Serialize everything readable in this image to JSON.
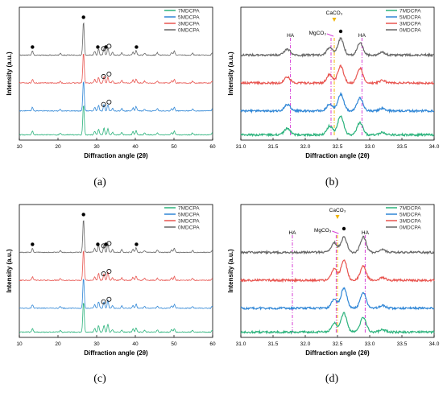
{
  "figure": {
    "captions": [
      "(a)",
      "(b)",
      "(c)",
      "(d)"
    ]
  },
  "chart_data": [
    {
      "type": "line",
      "panel": "a",
      "xlabel": "Diffraction angle (2θ)",
      "ylabel": "Intensity (a.u.)",
      "xlim": [
        10,
        60
      ],
      "xticks": [
        10,
        20,
        30,
        40,
        50,
        60
      ],
      "legend": "top-right",
      "series": [
        {
          "name": "7MDCPA",
          "color": "#2ab27b"
        },
        {
          "name": "5MDCPA",
          "color": "#2f86d6"
        },
        {
          "name": "3MDCPA",
          "color": "#e8544f"
        },
        {
          "name": "0MDCPA",
          "color": "#666666"
        }
      ],
      "peaks": [
        {
          "x": 13.4,
          "h": 0.12
        },
        {
          "x": 20.6,
          "h": 0.05
        },
        {
          "x": 26.6,
          "h": 1.0
        },
        {
          "x": 29.5,
          "h": 0.12
        },
        {
          "x": 30.5,
          "h": 0.18
        },
        {
          "x": 31.9,
          "h": 0.22
        },
        {
          "x": 32.9,
          "h": 0.2
        },
        {
          "x": 34.1,
          "h": 0.08
        },
        {
          "x": 36.5,
          "h": 0.08
        },
        {
          "x": 39.4,
          "h": 0.1
        },
        {
          "x": 40.2,
          "h": 0.14
        },
        {
          "x": 42.4,
          "h": 0.06
        },
        {
          "x": 45.7,
          "h": 0.07
        },
        {
          "x": 49.4,
          "h": 0.08
        },
        {
          "x": 50.1,
          "h": 0.12
        },
        {
          "x": 54.8,
          "h": 0.06
        },
        {
          "x": 59.9,
          "h": 0.06
        }
      ],
      "filled_dot_markers": [
        13.4,
        26.6,
        30.3,
        32.4,
        40.3
      ],
      "open_circle_markers": [
        31.8,
        33.2
      ]
    },
    {
      "type": "line",
      "panel": "b",
      "xlabel": "Diffraction angle (2θ)",
      "ylabel": "Intensity (a.u.)",
      "xlim": [
        31.0,
        34.0
      ],
      "xticks": [
        "31.0",
        "31.5",
        "32.0",
        "32.5",
        "33.0",
        "33.5",
        "34.0"
      ],
      "legend": "top-right",
      "series": [
        {
          "name": "7MDCPA",
          "color": "#2ab27b"
        },
        {
          "name": "5MDCPA",
          "color": "#2f86d6"
        },
        {
          "name": "3MDCPA",
          "color": "#e8544f"
        },
        {
          "name": "0MDCPA",
          "color": "#666666"
        }
      ],
      "peaks": [
        {
          "x": 31.72,
          "h": 0.3
        },
        {
          "x": 32.38,
          "h": 0.35
        },
        {
          "x": 32.55,
          "h": 0.8
        },
        {
          "x": 32.85,
          "h": 0.6
        },
        {
          "x": 33.2,
          "h": 0.12
        }
      ],
      "reference_lines": [
        {
          "x": 31.77,
          "label": "HA",
          "color": "#d63fd6"
        },
        {
          "x": 32.4,
          "label": "MgCO₃",
          "color": "#d63fd6"
        },
        {
          "x": 32.45,
          "label": "CaCO₃",
          "color": "#f0b400"
        },
        {
          "x": 32.88,
          "label": "HA",
          "color": "#d63fd6"
        }
      ],
      "filled_dot_markers": [
        32.55
      ]
    },
    {
      "type": "line",
      "panel": "c",
      "xlabel": "Diffraction angle (2θ)",
      "ylabel": "Intensity (a.u.)",
      "xlim": [
        10,
        60
      ],
      "xticks": [
        10,
        20,
        30,
        40,
        50,
        60
      ],
      "legend": "top-right",
      "series": [
        {
          "name": "7MDCPA",
          "color": "#2ab27b"
        },
        {
          "name": "5MDCPA",
          "color": "#2f86d6"
        },
        {
          "name": "3MDCPA",
          "color": "#e8544f"
        },
        {
          "name": "0MDCPA",
          "color": "#666666"
        }
      ],
      "peaks": [
        {
          "x": 13.4,
          "h": 0.12
        },
        {
          "x": 20.6,
          "h": 0.05
        },
        {
          "x": 26.6,
          "h": 1.0
        },
        {
          "x": 29.5,
          "h": 0.12
        },
        {
          "x": 30.5,
          "h": 0.22
        },
        {
          "x": 31.9,
          "h": 0.22
        },
        {
          "x": 32.9,
          "h": 0.26
        },
        {
          "x": 34.1,
          "h": 0.08
        },
        {
          "x": 36.5,
          "h": 0.08
        },
        {
          "x": 39.4,
          "h": 0.1
        },
        {
          "x": 40.2,
          "h": 0.14
        },
        {
          "x": 42.4,
          "h": 0.06
        },
        {
          "x": 45.7,
          "h": 0.07
        },
        {
          "x": 49.4,
          "h": 0.08
        },
        {
          "x": 50.1,
          "h": 0.12
        },
        {
          "x": 54.8,
          "h": 0.06
        },
        {
          "x": 59.9,
          "h": 0.06
        }
      ],
      "filled_dot_markers": [
        13.4,
        26.6,
        30.3,
        32.4,
        40.3
      ],
      "open_circle_markers": [
        31.8,
        33.2
      ]
    },
    {
      "type": "line",
      "panel": "d",
      "xlabel": "Diffraction angle (2θ)",
      "ylabel": "Intensity (a.u.)",
      "xlim": [
        31.0,
        34.0
      ],
      "xticks": [
        "31.0",
        "31.5",
        "32.0",
        "32.5",
        "33.0",
        "33.5",
        "34.0"
      ],
      "legend": "top-right",
      "series": [
        {
          "name": "7MDCPA",
          "color": "#2ab27b"
        },
        {
          "name": "5MDCPA",
          "color": "#2f86d6"
        },
        {
          "name": "3MDCPA",
          "color": "#e8544f"
        },
        {
          "name": "0MDCPA",
          "color": "#666666"
        }
      ],
      "peaks": [
        {
          "x": 32.45,
          "h": 0.45
        },
        {
          "x": 32.6,
          "h": 0.8
        },
        {
          "x": 32.9,
          "h": 0.7
        },
        {
          "x": 33.2,
          "h": 0.12
        }
      ],
      "reference_lines": [
        {
          "x": 31.8,
          "label": "HA",
          "color": "#d63fd6"
        },
        {
          "x": 32.48,
          "label": "MgCO₃",
          "color": "#d63fd6"
        },
        {
          "x": 32.5,
          "label": "CaCO₃",
          "color": "#f0b400"
        },
        {
          "x": 32.93,
          "label": "HA",
          "color": "#d63fd6"
        }
      ],
      "filled_dot_markers": [
        32.6
      ]
    }
  ]
}
